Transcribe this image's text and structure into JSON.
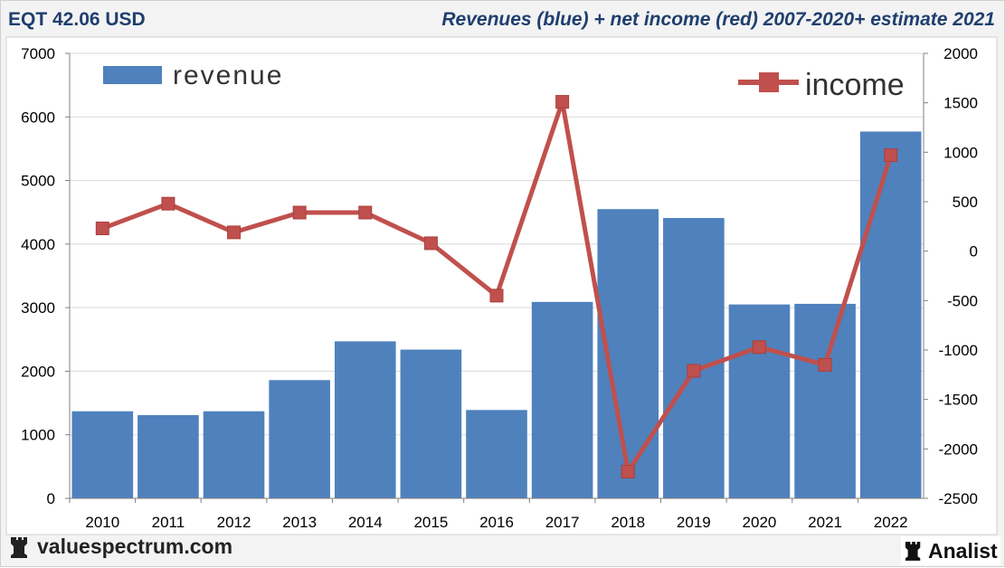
{
  "header": {
    "ticker": "EQT 42.06 USD",
    "subtitle": "Revenues (blue) + net income (red) 2007-2020+ estimate 2021"
  },
  "footer": {
    "site": "valuespectrum.com",
    "badge": "Analist"
  },
  "colors": {
    "revenue": "#4f81bd",
    "income": "#c0504d",
    "header_text": "#1f3f6e"
  },
  "chart_data": {
    "type": "bar+line",
    "categories": [
      "2010",
      "2011",
      "2012",
      "2013",
      "2014",
      "2015",
      "2016",
      "2017",
      "2018",
      "2019",
      "2020",
      "2021",
      "2022"
    ],
    "series": [
      {
        "name": "revenue",
        "type": "bar",
        "axis": "left",
        "values": [
          1370,
          1310,
          1370,
          1860,
          2470,
          2340,
          1390,
          3090,
          4550,
          4410,
          3050,
          3060,
          5770
        ]
      },
      {
        "name": "income",
        "type": "line",
        "axis": "right",
        "values": [
          230,
          480,
          190,
          390,
          390,
          80,
          -450,
          1510,
          -2230,
          -1210,
          -970,
          -1150,
          970
        ]
      }
    ],
    "y_left": {
      "range": [
        0,
        7000
      ],
      "ticks": [
        0,
        1000,
        2000,
        3000,
        4000,
        5000,
        6000,
        7000
      ]
    },
    "y_right": {
      "range": [
        -2500,
        2000
      ],
      "ticks": [
        -2500,
        -2000,
        -1500,
        -1000,
        -500,
        0,
        500,
        1000,
        1500,
        2000
      ]
    },
    "legend": {
      "revenue_label": "revenue",
      "income_label": "income",
      "placement": "top"
    },
    "grid": true
  }
}
